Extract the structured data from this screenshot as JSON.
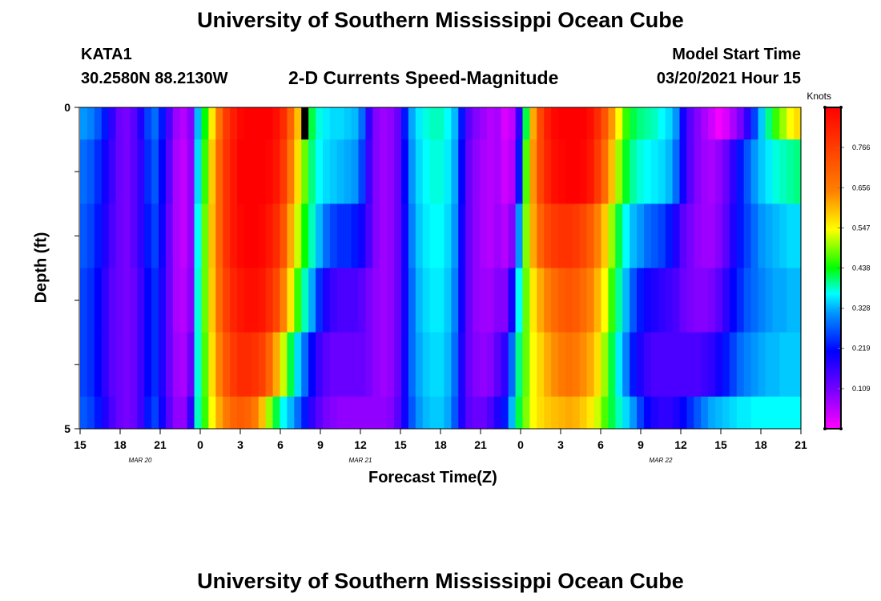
{
  "header": {
    "title_top": "University of Southern Mississippi Ocean Cube",
    "title_bottom": "University of Southern Mississippi Ocean Cube",
    "station_id": "KATA1",
    "station_coords": "30.2580N 88.2130W",
    "plot_title": "2-D Currents Speed-Magnitude",
    "model_start_label": "Model Start Time",
    "model_start_value": "03/20/2021 Hour 15"
  },
  "chart_data": {
    "type": "heatmap",
    "title": "2-D Currents Speed-Magnitude",
    "xlabel": "Forecast Time(Z)",
    "ylabel": "Depth (ft)",
    "y_tick_labels": [
      "0",
      "5"
    ],
    "ylim": [
      0,
      5
    ],
    "x_tick_labels": [
      "15",
      "18",
      "21",
      "0",
      "3",
      "6",
      "9",
      "12",
      "15",
      "18",
      "21",
      "0",
      "3",
      "6",
      "9",
      "12",
      "15",
      "18",
      "21"
    ],
    "date_labels": [
      "MAR 20",
      "MAR 21",
      "MAR 22"
    ],
    "time_range_hours": [
      0,
      54
    ],
    "depth_rows_ft": [
      0,
      0.5,
      1.5,
      2.5,
      3.5,
      4.5
    ],
    "row_heights_ft": [
      0.5,
      1,
      1,
      1,
      1,
      0.5
    ],
    "missing_cell": {
      "row": 0,
      "col": 31
    },
    "values": [
      [
        0.26,
        0.25,
        0.23,
        0.2,
        0.16,
        0.12,
        0.11,
        0.13,
        0.17,
        0.22,
        0.24,
        0.2,
        0.14,
        0.08,
        0.06,
        0.1,
        0.28,
        0.4,
        0.52,
        0.64,
        0.72,
        0.76,
        0.79,
        0.81,
        0.82,
        0.82,
        0.8,
        0.78,
        0.74,
        0.66,
        0.56,
        0.46,
        0.38,
        0.33,
        0.31,
        0.3,
        0.3,
        0.29,
        0.28,
        0.24,
        0.16,
        0.1,
        0.08,
        0.09,
        0.12,
        0.2,
        0.27,
        0.31,
        0.33,
        0.34,
        0.34,
        0.32,
        0.28,
        0.2,
        0.13,
        0.1,
        0.08,
        0.06,
        0.07,
        0.03,
        0.05,
        0.16,
        0.38,
        0.58,
        0.7,
        0.76,
        0.79,
        0.81,
        0.82,
        0.82,
        0.81,
        0.78,
        0.74,
        0.68,
        0.6,
        0.5,
        0.42,
        0.38,
        0.36,
        0.35,
        0.34,
        0.32,
        0.3,
        0.26,
        0.18,
        0.13,
        0.1,
        0.07,
        0.04,
        0.01,
        0.03,
        0.07,
        0.11,
        0.16,
        0.22,
        0.29,
        0.36,
        0.42,
        0.46,
        0.5,
        0.53
      ],
      [
        0.24,
        0.23,
        0.21,
        0.18,
        0.15,
        0.12,
        0.11,
        0.13,
        0.16,
        0.21,
        0.23,
        0.19,
        0.13,
        0.07,
        0.05,
        0.09,
        0.3,
        0.42,
        0.55,
        0.66,
        0.73,
        0.77,
        0.8,
        0.81,
        0.82,
        0.81,
        0.79,
        0.77,
        0.72,
        0.63,
        0.53,
        0.44,
        0.36,
        0.32,
        0.3,
        0.29,
        0.28,
        0.27,
        0.26,
        0.22,
        0.15,
        0.1,
        0.08,
        0.09,
        0.12,
        0.19,
        0.26,
        0.3,
        0.32,
        0.33,
        0.33,
        0.31,
        0.27,
        0.19,
        0.12,
        0.09,
        0.07,
        0.06,
        0.07,
        0.04,
        0.06,
        0.2,
        0.43,
        0.6,
        0.7,
        0.75,
        0.78,
        0.79,
        0.8,
        0.8,
        0.79,
        0.77,
        0.72,
        0.65,
        0.56,
        0.46,
        0.39,
        0.35,
        0.33,
        0.32,
        0.31,
        0.3,
        0.28,
        0.24,
        0.18,
        0.13,
        0.1,
        0.08,
        0.07,
        0.09,
        0.12,
        0.16,
        0.2,
        0.23,
        0.26,
        0.29,
        0.31,
        0.33,
        0.34,
        0.35,
        0.36
      ],
      [
        0.23,
        0.22,
        0.2,
        0.17,
        0.14,
        0.12,
        0.11,
        0.13,
        0.16,
        0.2,
        0.22,
        0.18,
        0.12,
        0.07,
        0.05,
        0.09,
        0.32,
        0.44,
        0.56,
        0.66,
        0.73,
        0.77,
        0.79,
        0.8,
        0.8,
        0.79,
        0.77,
        0.74,
        0.68,
        0.58,
        0.48,
        0.4,
        0.34,
        0.28,
        0.24,
        0.22,
        0.21,
        0.21,
        0.2,
        0.18,
        0.14,
        0.1,
        0.08,
        0.09,
        0.12,
        0.18,
        0.25,
        0.29,
        0.31,
        0.32,
        0.32,
        0.3,
        0.26,
        0.18,
        0.12,
        0.09,
        0.07,
        0.06,
        0.08,
        0.06,
        0.1,
        0.26,
        0.45,
        0.58,
        0.66,
        0.7,
        0.72,
        0.73,
        0.73,
        0.72,
        0.7,
        0.67,
        0.62,
        0.55,
        0.46,
        0.38,
        0.32,
        0.28,
        0.26,
        0.24,
        0.23,
        0.22,
        0.2,
        0.17,
        0.13,
        0.11,
        0.09,
        0.08,
        0.08,
        0.1,
        0.13,
        0.17,
        0.2,
        0.22,
        0.24,
        0.26,
        0.27,
        0.28,
        0.29,
        0.3,
        0.3
      ],
      [
        0.22,
        0.21,
        0.19,
        0.16,
        0.13,
        0.12,
        0.11,
        0.12,
        0.15,
        0.19,
        0.21,
        0.17,
        0.12,
        0.07,
        0.06,
        0.1,
        0.33,
        0.44,
        0.55,
        0.65,
        0.71,
        0.75,
        0.77,
        0.78,
        0.78,
        0.77,
        0.74,
        0.7,
        0.62,
        0.52,
        0.42,
        0.34,
        0.27,
        0.21,
        0.17,
        0.15,
        0.14,
        0.14,
        0.14,
        0.13,
        0.11,
        0.09,
        0.08,
        0.09,
        0.12,
        0.18,
        0.24,
        0.28,
        0.3,
        0.31,
        0.31,
        0.29,
        0.25,
        0.18,
        0.12,
        0.09,
        0.08,
        0.08,
        0.1,
        0.1,
        0.18,
        0.32,
        0.44,
        0.52,
        0.58,
        0.62,
        0.65,
        0.67,
        0.68,
        0.67,
        0.65,
        0.62,
        0.57,
        0.5,
        0.42,
        0.35,
        0.28,
        0.23,
        0.2,
        0.18,
        0.17,
        0.16,
        0.15,
        0.14,
        0.12,
        0.11,
        0.1,
        0.1,
        0.11,
        0.13,
        0.16,
        0.19,
        0.21,
        0.23,
        0.24,
        0.25,
        0.26,
        0.27,
        0.27,
        0.28,
        0.28
      ],
      [
        0.22,
        0.21,
        0.19,
        0.16,
        0.13,
        0.12,
        0.11,
        0.12,
        0.15,
        0.19,
        0.21,
        0.17,
        0.12,
        0.08,
        0.07,
        0.12,
        0.33,
        0.43,
        0.53,
        0.62,
        0.68,
        0.72,
        0.74,
        0.74,
        0.73,
        0.71,
        0.66,
        0.58,
        0.48,
        0.38,
        0.3,
        0.24,
        0.19,
        0.15,
        0.13,
        0.12,
        0.12,
        0.12,
        0.12,
        0.12,
        0.11,
        0.09,
        0.08,
        0.09,
        0.12,
        0.18,
        0.24,
        0.27,
        0.29,
        0.3,
        0.3,
        0.28,
        0.24,
        0.17,
        0.12,
        0.1,
        0.09,
        0.1,
        0.13,
        0.16,
        0.24,
        0.36,
        0.44,
        0.5,
        0.54,
        0.58,
        0.61,
        0.63,
        0.64,
        0.63,
        0.61,
        0.58,
        0.53,
        0.46,
        0.38,
        0.31,
        0.25,
        0.2,
        0.17,
        0.15,
        0.14,
        0.14,
        0.14,
        0.14,
        0.14,
        0.14,
        0.14,
        0.15,
        0.16,
        0.18,
        0.2,
        0.22,
        0.24,
        0.25,
        0.26,
        0.27,
        0.28,
        0.28,
        0.29,
        0.29,
        0.29
      ],
      [
        0.23,
        0.22,
        0.2,
        0.17,
        0.14,
        0.12,
        0.11,
        0.12,
        0.15,
        0.2,
        0.22,
        0.18,
        0.13,
        0.09,
        0.09,
        0.16,
        0.34,
        0.42,
        0.5,
        0.58,
        0.63,
        0.66,
        0.67,
        0.66,
        0.63,
        0.56,
        0.46,
        0.38,
        0.32,
        0.28,
        0.24,
        0.2,
        0.16,
        0.13,
        0.11,
        0.1,
        0.09,
        0.09,
        0.09,
        0.09,
        0.09,
        0.09,
        0.09,
        0.1,
        0.13,
        0.18,
        0.23,
        0.26,
        0.28,
        0.29,
        0.29,
        0.27,
        0.23,
        0.17,
        0.13,
        0.12,
        0.12,
        0.14,
        0.17,
        0.2,
        0.28,
        0.38,
        0.45,
        0.5,
        0.53,
        0.55,
        0.56,
        0.57,
        0.58,
        0.57,
        0.55,
        0.52,
        0.48,
        0.43,
        0.38,
        0.34,
        0.3,
        0.26,
        0.22,
        0.19,
        0.17,
        0.16,
        0.16,
        0.17,
        0.19,
        0.21,
        0.23,
        0.25,
        0.27,
        0.28,
        0.29,
        0.3,
        0.31,
        0.31,
        0.32,
        0.32,
        0.32,
        0.32,
        0.32,
        0.32,
        0.32
      ]
    ],
    "colorbar": {
      "label": "Knots",
      "range": [
        0,
        0.875
      ],
      "ticks": [
        "0.109",
        "0.219",
        "0.328",
        "0.438",
        "0.547",
        "0.656",
        "0.766"
      ],
      "tick_values": [
        0.109,
        0.219,
        0.328,
        0.438,
        0.547,
        0.656,
        0.766
      ]
    }
  }
}
